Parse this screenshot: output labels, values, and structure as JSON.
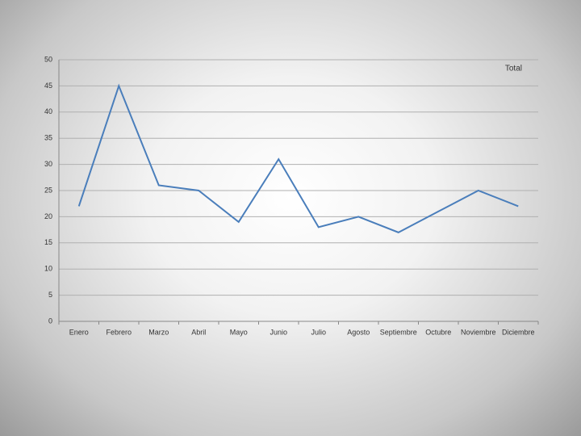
{
  "chart_data": {
    "type": "line",
    "categories": [
      "Enero",
      "Febrero",
      "Marzo",
      "Abril",
      "Mayo",
      "Junio",
      "Julio",
      "Agosto",
      "Septiembre",
      "Octubre",
      "Noviembre",
      "Diciembre"
    ],
    "series": [
      {
        "name": "Total",
        "color": "#4a7ebb",
        "values": [
          22,
          45,
          26,
          25,
          19,
          31,
          18,
          20,
          17,
          21,
          25,
          22
        ]
      }
    ],
    "ylim": [
      0,
      50
    ],
    "yticks": [
      0,
      5,
      10,
      15,
      20,
      25,
      30,
      35,
      40,
      45,
      50
    ],
    "grid": true,
    "legend": "top-right"
  }
}
